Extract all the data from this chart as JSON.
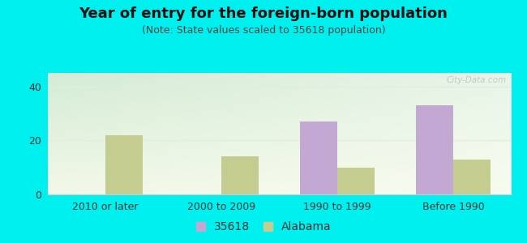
{
  "title": "Year of entry for the foreign-born population",
  "subtitle": "(Note: State values scaled to 35618 population)",
  "categories": [
    "2010 or later",
    "2000 to 2009",
    "1990 to 1999",
    "Before 1990"
  ],
  "values_35618": [
    0,
    0,
    27,
    33
  ],
  "values_alabama": [
    22,
    14,
    10,
    13
  ],
  "color_35618": "#c4a8d4",
  "color_alabama": "#c5cc90",
  "bg_outer": "#00f0f0",
  "bg_plot_topleft": "#d4ecd4",
  "bg_plot_topright": "#e8f4e8",
  "bg_plot_bottomleft": "#f2f8e8",
  "bg_plot_bottomright": "#f8fcf0",
  "ylim": [
    0,
    45
  ],
  "yticks": [
    0,
    20,
    40
  ],
  "bar_width": 0.32,
  "legend_label_35618": "35618",
  "legend_label_alabama": "Alabama",
  "title_fontsize": 13,
  "subtitle_fontsize": 9,
  "tick_fontsize": 9,
  "legend_fontsize": 10,
  "grid_color": "#e0ede0",
  "spine_color": "#cccccc"
}
